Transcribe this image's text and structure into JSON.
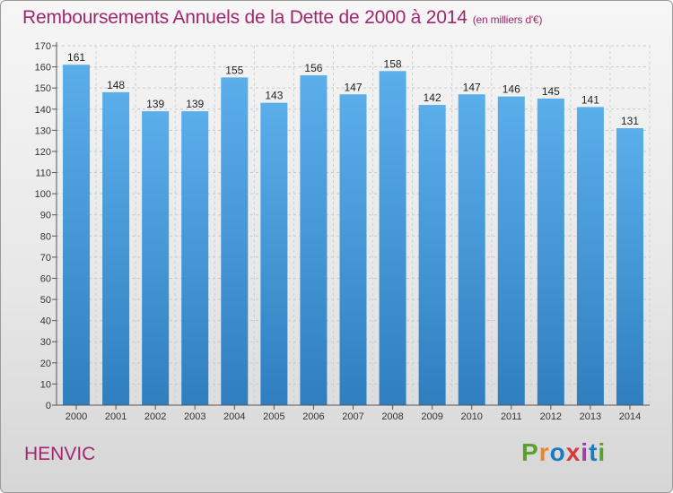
{
  "header": {
    "title": "Remboursements Annuels de la Dette de 2000 à 2014",
    "subtitle": "(en milliers d'€)"
  },
  "footer": {
    "commune": "HENVIC",
    "logo": {
      "letters": [
        "P",
        "r",
        "o",
        "x",
        "i",
        "t",
        "i"
      ],
      "colors": [
        "#5aa02c",
        "#e8862a",
        "#1a7cc0",
        "#d63a3a",
        "#9a3ea8",
        "#1a7cc0",
        "#5aa02c"
      ]
    }
  },
  "chart_data": {
    "type": "bar",
    "categories": [
      "2000",
      "2001",
      "2002",
      "2003",
      "2004",
      "2005",
      "2006",
      "2007",
      "2008",
      "2009",
      "2010",
      "2011",
      "2012",
      "2013",
      "2014"
    ],
    "values": [
      161,
      148,
      139,
      139,
      155,
      143,
      156,
      147,
      158,
      142,
      147,
      146,
      145,
      141,
      131
    ],
    "ylim": [
      0,
      170
    ],
    "yticks": [
      0,
      10,
      20,
      30,
      40,
      50,
      60,
      70,
      80,
      90,
      100,
      110,
      120,
      130,
      140,
      150,
      160,
      170
    ],
    "grid": true,
    "bar_color": "#4a9fe0"
  }
}
